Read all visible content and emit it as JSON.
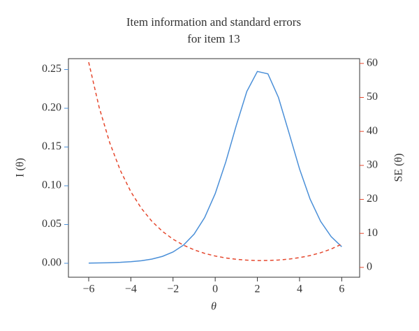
{
  "chart_data": {
    "type": "line",
    "title": [
      "Item information and standard errors",
      "for item 13"
    ],
    "x_label": "θ",
    "y_label": "I (θ)",
    "y2_label": "SE (θ)",
    "x": [
      -6,
      -5.5,
      -5,
      -4.5,
      -4,
      -3.5,
      -3,
      -2.5,
      -2,
      -1.5,
      -1,
      -0.5,
      0,
      0.5,
      1,
      1.5,
      2,
      2.5,
      3,
      3.5,
      4,
      4.5,
      5,
      5.5,
      6
    ],
    "series": [
      {
        "name": "I (θ)",
        "color": "#4a8fd8",
        "dash": false,
        "values": [
          0.000274,
          0.000452,
          0.000745,
          0.001228,
          0.002022,
          0.003322,
          0.005455,
          0.008934,
          0.01455,
          0.02354,
          0.03763,
          0.05902,
          0.0898,
          0.1306,
          0.1779,
          0.2217,
          0.2475,
          0.2444,
          0.2139,
          0.1682,
          0.1217,
          0.08281,
          0.05404,
          0.03431,
          0.0214
        ]
      },
      {
        "name": "SE (θ)",
        "color": "#e5472d",
        "dash": true,
        "axis": "y2",
        "values": [
          60.36,
          47.01,
          36.63,
          28.54,
          22.24,
          17.35,
          13.54,
          10.58,
          8.289,
          6.517,
          5.155,
          4.116,
          3.337,
          2.767,
          2.371,
          2.124,
          2.01,
          2.023,
          2.162,
          2.438,
          2.866,
          3.475,
          4.302,
          5.399,
          6.836
        ]
      }
    ],
    "xlim": [
      -6.96,
      6.85
    ],
    "xticks": [
      {
        "value": -6,
        "label": "−6"
      },
      {
        "value": -4,
        "label": "−4"
      },
      {
        "value": -2,
        "label": "−2"
      },
      0,
      2,
      4,
      6
    ],
    "ylim": [
      -0.018,
      0.264
    ],
    "yticks": [
      {
        "value": 0,
        "label": "0.00"
      },
      {
        "value": 0.05,
        "label": "0.05"
      },
      {
        "value": 0.1,
        "label": "0.10"
      },
      {
        "value": 0.15,
        "label": "0.15"
      },
      {
        "value": 0.2,
        "label": "0.20"
      },
      {
        "value": 0.25,
        "label": "0.25"
      }
    ],
    "y2lim": [
      -2.9,
      61.4
    ],
    "y2ticks": [
      0,
      10,
      20,
      30,
      40,
      50,
      60
    ]
  }
}
